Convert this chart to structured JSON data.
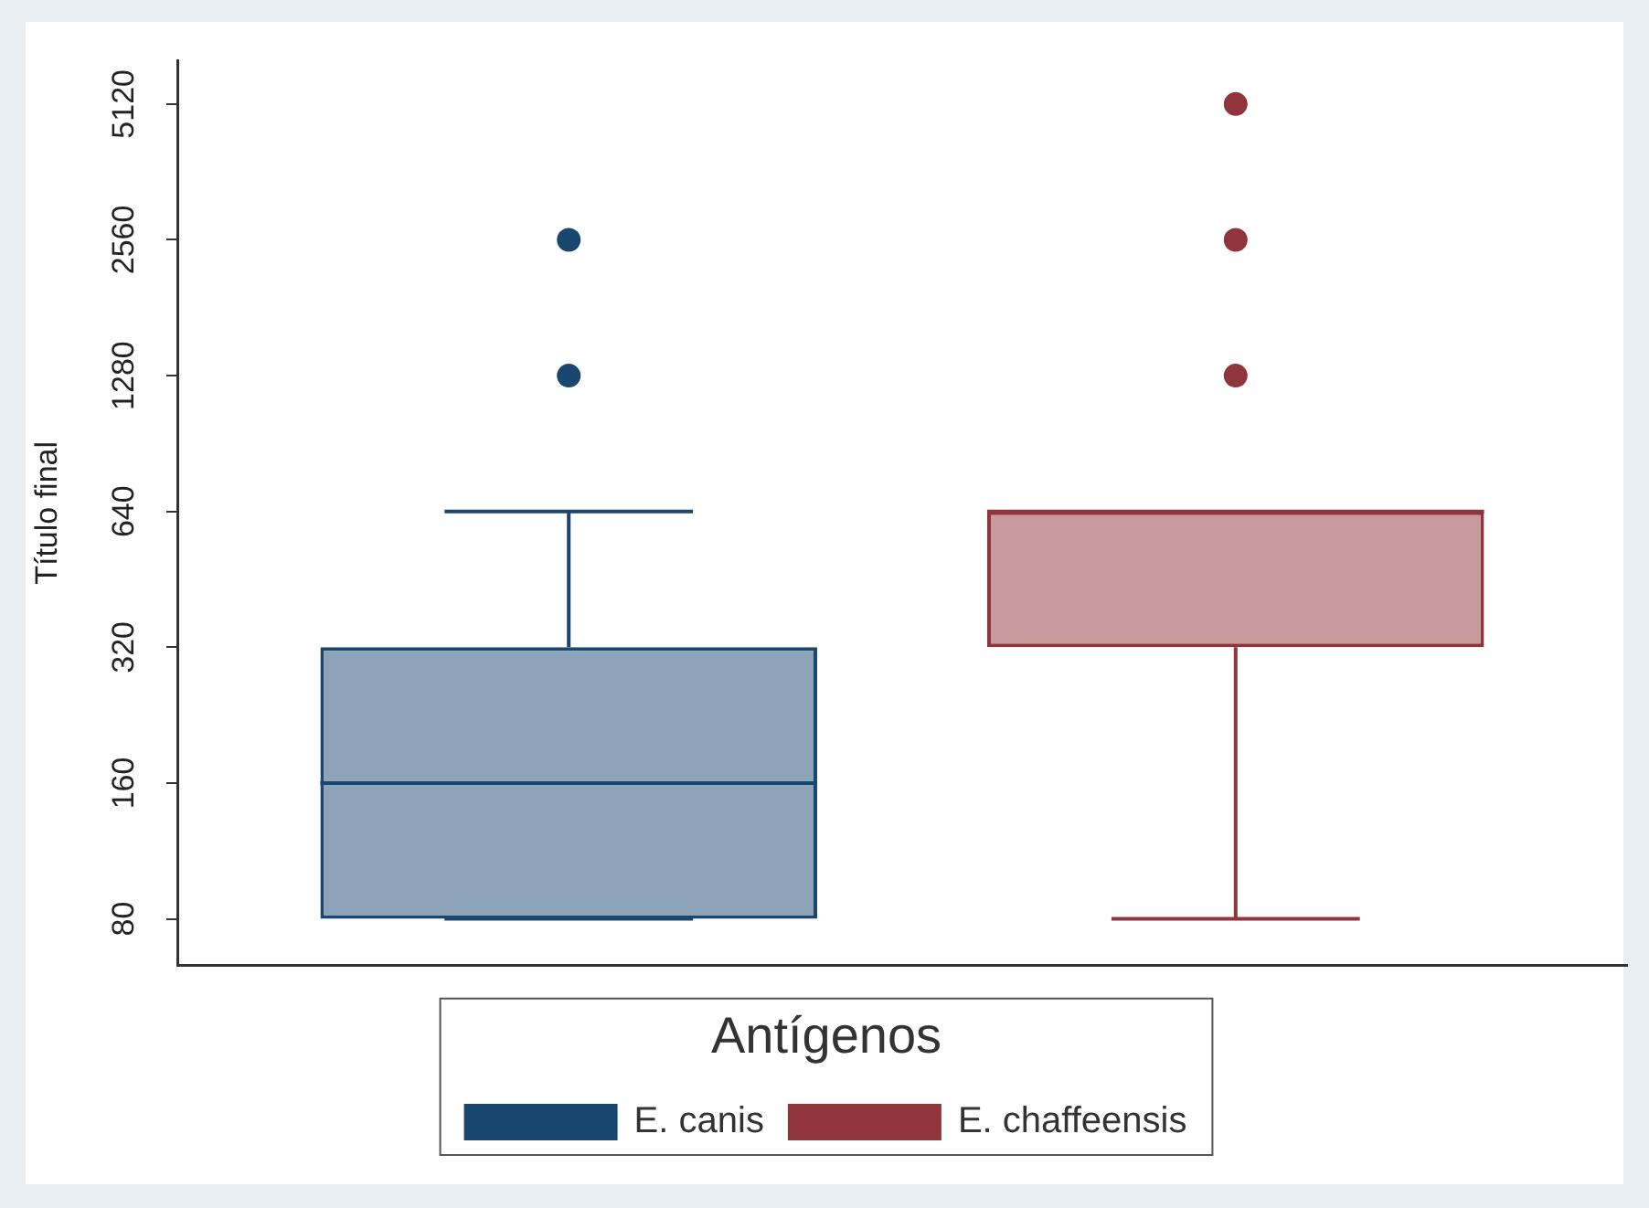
{
  "chart_data": {
    "type": "box",
    "ylabel": "Título final",
    "legend_title": "Antígenos",
    "legend": "bottom",
    "grid": false,
    "log": "y",
    "categories": [
      null
    ],
    "ylim": [
      63,
      6400
    ],
    "yticks": [
      80,
      160,
      320,
      640,
      1280,
      2560,
      5120
    ],
    "series": [
      {
        "name": "E. canis",
        "color": "#1a476f",
        "boxes": [
          {
            "low": 80,
            "q1": 80,
            "median": 160,
            "q3": 320,
            "high": 640,
            "outliers": [
              1280,
              2560
            ]
          }
        ]
      },
      {
        "name": "E. chaffeensis",
        "color": "#90353b",
        "boxes": [
          {
            "low": 80,
            "q1": 320,
            "median": 640,
            "q3": 640,
            "high": 640,
            "outliers": [
              1280,
              2560,
              5120
            ]
          }
        ]
      }
    ]
  }
}
